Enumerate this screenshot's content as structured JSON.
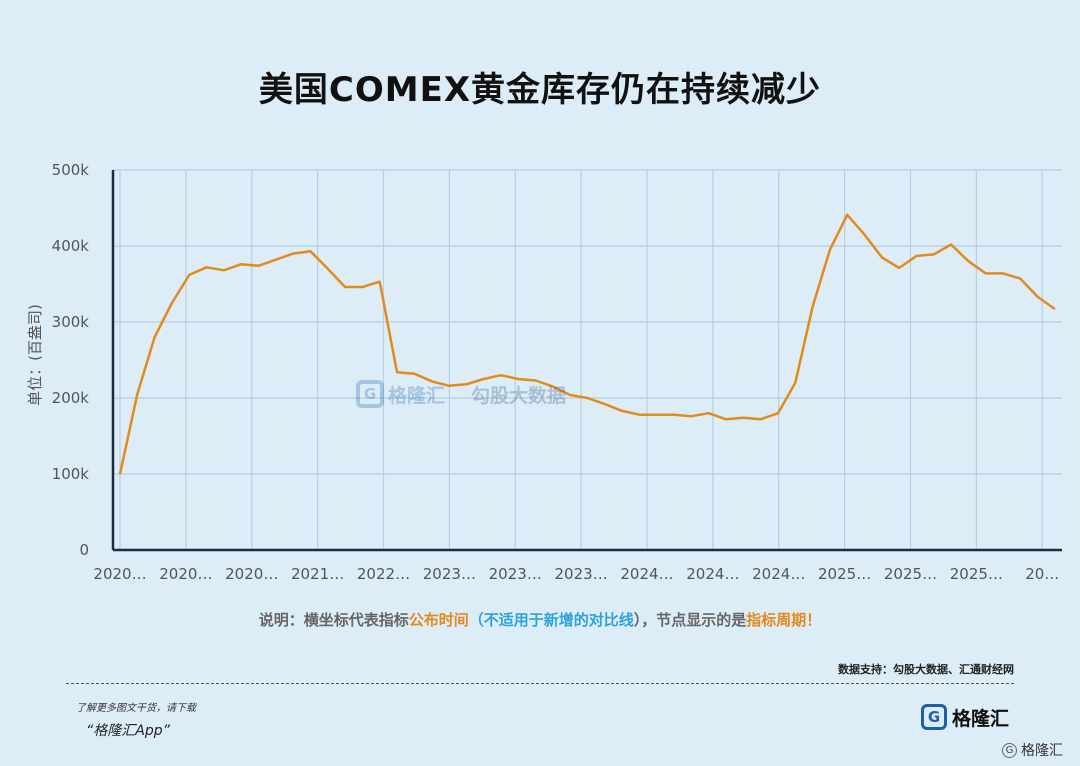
{
  "title": "美国COMEX黄金库存仍在持续减少",
  "chart_data": {
    "type": "line",
    "title": "美国COMEX黄金库存仍在持续减少",
    "ylabel": "单位：(百盎司)",
    "ylim": [
      0,
      500000
    ],
    "yticks": [
      "0",
      "100k",
      "200k",
      "300k",
      "400k",
      "500k"
    ],
    "ytick_values": [
      0,
      100000,
      200000,
      300000,
      400000,
      500000
    ],
    "xtick_labels": [
      "2020…",
      "2020…",
      "2020…",
      "2021…",
      "2022…",
      "2023…",
      "2023…",
      "2023…",
      "2024…",
      "2024…",
      "2024…",
      "2025…",
      "2025…",
      "2025…",
      "20…"
    ],
    "grid": true,
    "series": [
      {
        "color": "#e48a1c",
        "values": [
          100000,
          205000,
          280000,
          325000,
          362000,
          372000,
          368000,
          376000,
          374000,
          382000,
          390000,
          393000,
          370000,
          346000,
          346000,
          353000,
          234000,
          232000,
          222000,
          216000,
          218000,
          225000,
          230000,
          225000,
          223000,
          215000,
          204000,
          200000,
          192000,
          183000,
          178000,
          178000,
          178000,
          176000,
          180000,
          172000,
          174000,
          172000,
          180000,
          220000,
          320000,
          395000,
          441000,
          415000,
          385000,
          371000,
          387000,
          389000,
          402000,
          380000,
          364000,
          364000,
          357000,
          333000,
          317000
        ]
      }
    ]
  },
  "note": {
    "prefix": "说明：横坐标代表指标",
    "time_part": "公布时间",
    "paren_open": "（",
    "blue_part": "不适用于新增的对比线",
    "paren_close": "），节点显示的是",
    "period_part": "指标周期！"
  },
  "source": "数据支持：勾股大数据、汇通财经网",
  "download_line1": "了解更多图文干货，请下载",
  "download_line2": "“格隆汇App”",
  "watermark": {
    "brand": "格隆汇",
    "data_brand": "勾股大数据"
  },
  "brand_logo": "格隆汇",
  "corner_logo": "格隆汇",
  "colors": {
    "background": "#dcedf8",
    "line": "#e48a1c",
    "grid": "#b5cfe0",
    "axis": "#1d2b3c",
    "accent_blue": "#2fa3d8"
  }
}
